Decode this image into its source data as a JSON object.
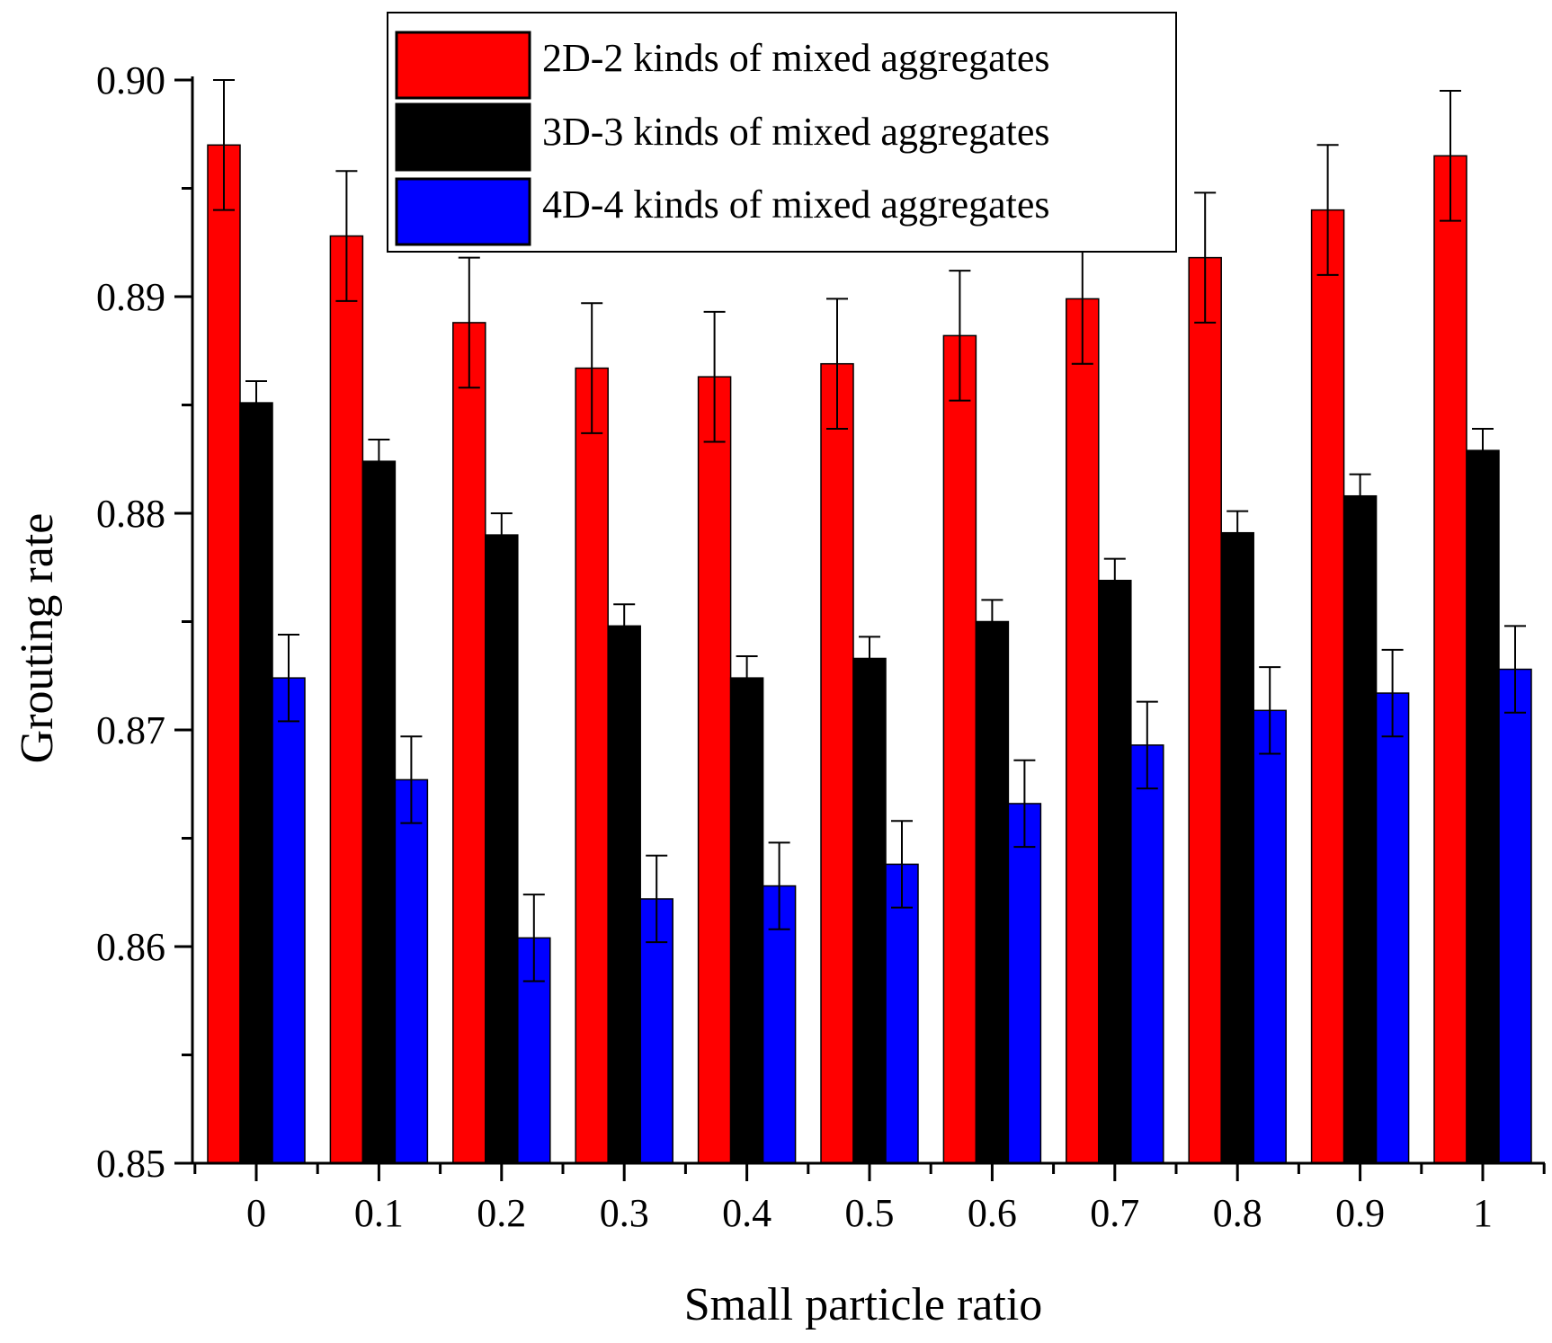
{
  "chart_data": {
    "type": "bar",
    "title": "",
    "xlabel": "Small particle ratio",
    "ylabel": "Grouting rate",
    "categories": [
      "0",
      "0.1",
      "0.2",
      "0.3",
      "0.4",
      "0.5",
      "0.6",
      "0.7",
      "0.8",
      "0.9",
      "1"
    ],
    "ylim": [
      0.85,
      0.9
    ],
    "yticks": [
      "0.85",
      "0.86",
      "0.87",
      "0.88",
      "0.89",
      "0.90"
    ],
    "legend_position": "top",
    "series": [
      {
        "name": "2D-2 kinds of mixed aggregates",
        "color": "#ff0000",
        "values": [
          0.897,
          0.8928,
          0.8888,
          0.8867,
          0.8863,
          0.8869,
          0.8882,
          0.8899,
          0.8918,
          0.894,
          0.8965
        ],
        "errors": [
          0.003,
          0.003,
          0.003,
          0.003,
          0.003,
          0.003,
          0.003,
          0.003,
          0.003,
          0.003,
          0.003
        ]
      },
      {
        "name": "3D-3 kinds of mixed aggregates",
        "color": "#000000",
        "values": [
          0.8851,
          0.8824,
          0.879,
          0.8748,
          0.8724,
          0.8733,
          0.875,
          0.8769,
          0.8791,
          0.8808,
          0.8829
        ],
        "errors": [
          0.001,
          0.001,
          0.001,
          0.001,
          0.001,
          0.001,
          0.001,
          0.001,
          0.001,
          0.001,
          0.001
        ]
      },
      {
        "name": "4D-4 kinds of mixed aggregates",
        "color": "#0000ff",
        "values": [
          0.8724,
          0.8677,
          0.8604,
          0.8622,
          0.8628,
          0.8638,
          0.8666,
          0.8693,
          0.8709,
          0.8717,
          0.8728
        ],
        "errors": [
          0.002,
          0.002,
          0.002,
          0.002,
          0.002,
          0.002,
          0.002,
          0.002,
          0.002,
          0.002,
          0.002
        ]
      }
    ]
  }
}
